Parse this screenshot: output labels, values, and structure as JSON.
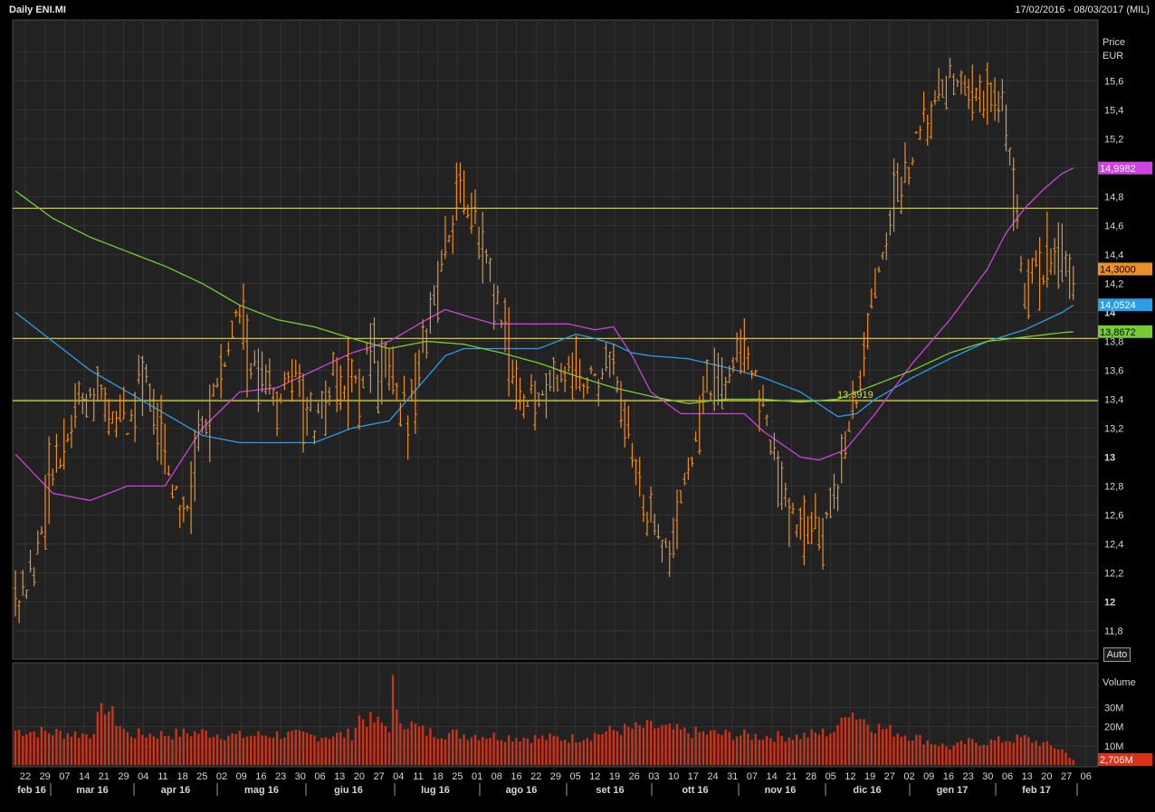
{
  "header": {
    "title": "Daily ENI.MI",
    "range": "17/02/2016 - 08/03/2017 (MIL)"
  },
  "colors": {
    "background": "#222222",
    "grid": "#333333",
    "candle": "#e8902a",
    "ma_magenta": "#cc44dd",
    "ma_blue": "#2a9de6",
    "ma_green": "#77cc33",
    "hline": "#e2dc3c",
    "volume": "#cc3318"
  },
  "axes": {
    "price_title": "Price",
    "price_unit": "EUR",
    "price_ticks": [
      "11,8",
      "12",
      "12,2",
      "12,4",
      "12,6",
      "12,8",
      "13",
      "13,2",
      "13,4",
      "13,6",
      "13,8",
      "14",
      "14,2",
      "14,4",
      "14,6",
      "14,8",
      "15,2",
      "15,4",
      "15,6"
    ],
    "bold_ticks": [
      "12",
      "13",
      "14"
    ],
    "volume_title": "Volume",
    "volume_ticks": [
      "10M",
      "20M",
      "30M"
    ],
    "auto_label": "Auto",
    "day_ticks": [
      "22",
      "29",
      "07",
      "14",
      "21",
      "29",
      "04",
      "11",
      "18",
      "25",
      "02",
      "09",
      "16",
      "23",
      "30",
      "06",
      "13",
      "20",
      "27",
      "04",
      "11",
      "18",
      "25",
      "01",
      "08",
      "16",
      "22",
      "29",
      "05",
      "12",
      "19",
      "26",
      "03",
      "10",
      "17",
      "24",
      "31",
      "07",
      "14",
      "21",
      "28",
      "05",
      "12",
      "19",
      "27",
      "02",
      "09",
      "16",
      "23",
      "30",
      "06",
      "13",
      "20",
      "27",
      "06"
    ],
    "month_labels": [
      "feb 16",
      "mar 16",
      "apr 16",
      "mag 16",
      "giu 16",
      "lug 16",
      "ago 16",
      "set 16",
      "ott 16",
      "nov 16",
      "dic 16",
      "gen 17",
      "feb 17"
    ]
  },
  "badges": {
    "magenta": "14,9982",
    "last": "14,3000",
    "blue": "14,0524",
    "green": "13,8672",
    "volume": "2,706M",
    "hline_label": "13,3919"
  },
  "chart_data": {
    "type": "ohlc-bar",
    "title": "Daily ENI.MI",
    "period": "17/02/2016 - 08/03/2017",
    "y_label": "Price EUR",
    "ylim": [
      11.65,
      15.9
    ],
    "x_labels": [
      "22",
      "29",
      "07",
      "14",
      "21",
      "29",
      "04",
      "11",
      "18",
      "25",
      "02",
      "09",
      "16",
      "23",
      "30",
      "06",
      "13",
      "20",
      "27",
      "04",
      "11",
      "18",
      "25",
      "01",
      "08",
      "16",
      "22",
      "29",
      "05",
      "12",
      "19",
      "26",
      "03",
      "10",
      "17",
      "24",
      "31",
      "07",
      "14",
      "21",
      "28",
      "05",
      "12",
      "19",
      "27",
      "02",
      "09",
      "16",
      "23",
      "30",
      "06",
      "13",
      "20",
      "27",
      "06"
    ],
    "price_keypoints": [
      [
        0,
        12.0
      ],
      [
        5,
        12.2
      ],
      [
        10,
        12.9
      ],
      [
        15,
        13.3
      ],
      [
        20,
        13.5
      ],
      [
        25,
        13.3
      ],
      [
        30,
        13.2
      ],
      [
        35,
        13.6
      ],
      [
        40,
        13.0
      ],
      [
        45,
        12.6
      ],
      [
        50,
        13.1
      ],
      [
        55,
        13.6
      ],
      [
        60,
        14.0
      ],
      [
        65,
        13.5
      ],
      [
        70,
        13.4
      ],
      [
        75,
        13.6
      ],
      [
        80,
        13.2
      ],
      [
        85,
        13.5
      ],
      [
        90,
        13.5
      ],
      [
        95,
        13.7
      ],
      [
        100,
        13.6
      ],
      [
        105,
        13.3
      ],
      [
        110,
        13.8
      ],
      [
        115,
        14.5
      ],
      [
        120,
        14.8
      ],
      [
        125,
        14.4
      ],
      [
        130,
        14.0
      ],
      [
        135,
        13.4
      ],
      [
        140,
        13.4
      ],
      [
        145,
        13.6
      ],
      [
        150,
        13.6
      ],
      [
        155,
        13.5
      ],
      [
        160,
        13.7
      ],
      [
        165,
        13.0
      ],
      [
        170,
        12.5
      ],
      [
        175,
        12.4
      ],
      [
        180,
        12.9
      ],
      [
        185,
        13.4
      ],
      [
        190,
        13.5
      ],
      [
        195,
        13.8
      ],
      [
        200,
        13.3
      ],
      [
        205,
        12.8
      ],
      [
        210,
        12.5
      ],
      [
        215,
        12.5
      ],
      [
        220,
        12.8
      ],
      [
        225,
        13.4
      ],
      [
        230,
        14.2
      ],
      [
        235,
        14.8
      ],
      [
        240,
        15.1
      ],
      [
        245,
        15.4
      ],
      [
        250,
        15.6
      ],
      [
        255,
        15.5
      ],
      [
        260,
        15.5
      ],
      [
        265,
        15.3
      ],
      [
        270,
        14.2
      ],
      [
        275,
        14.3
      ],
      [
        280,
        14.4
      ],
      [
        283,
        14.3
      ]
    ],
    "moving_averages": [
      {
        "name": "14,9982",
        "color": "#cc44dd",
        "points": [
          [
            0,
            13.02
          ],
          [
            10,
            12.75
          ],
          [
            20,
            12.7
          ],
          [
            30,
            12.8
          ],
          [
            40,
            12.8
          ],
          [
            50,
            13.2
          ],
          [
            60,
            13.45
          ],
          [
            70,
            13.48
          ],
          [
            80,
            13.6
          ],
          [
            90,
            13.72
          ],
          [
            100,
            13.8
          ],
          [
            110,
            13.95
          ],
          [
            115,
            14.02
          ],
          [
            120,
            13.98
          ],
          [
            128,
            13.92
          ],
          [
            138,
            13.92
          ],
          [
            148,
            13.92
          ],
          [
            155,
            13.88
          ],
          [
            160,
            13.9
          ],
          [
            165,
            13.7
          ],
          [
            170,
            13.45
          ],
          [
            178,
            13.3
          ],
          [
            190,
            13.3
          ],
          [
            195,
            13.3
          ],
          [
            200,
            13.18
          ],
          [
            210,
            13.0
          ],
          [
            215,
            12.98
          ],
          [
            222,
            13.05
          ],
          [
            230,
            13.3
          ],
          [
            240,
            13.65
          ],
          [
            250,
            13.95
          ],
          [
            260,
            14.3
          ],
          [
            265,
            14.55
          ],
          [
            270,
            14.72
          ],
          [
            275,
            14.85
          ],
          [
            280,
            14.96
          ],
          [
            283,
            14.998
          ]
        ]
      },
      {
        "name": "14,0524",
        "color": "#2a9de6",
        "points": [
          [
            0,
            14.0
          ],
          [
            10,
            13.8
          ],
          [
            20,
            13.6
          ],
          [
            30,
            13.45
          ],
          [
            40,
            13.3
          ],
          [
            50,
            13.15
          ],
          [
            60,
            13.1
          ],
          [
            70,
            13.1
          ],
          [
            80,
            13.1
          ],
          [
            90,
            13.2
          ],
          [
            100,
            13.25
          ],
          [
            110,
            13.55
          ],
          [
            115,
            13.7
          ],
          [
            120,
            13.75
          ],
          [
            130,
            13.75
          ],
          [
            140,
            13.75
          ],
          [
            150,
            13.85
          ],
          [
            155,
            13.82
          ],
          [
            160,
            13.78
          ],
          [
            165,
            13.72
          ],
          [
            170,
            13.7
          ],
          [
            180,
            13.68
          ],
          [
            190,
            13.62
          ],
          [
            200,
            13.55
          ],
          [
            205,
            13.5
          ],
          [
            210,
            13.45
          ],
          [
            220,
            13.28
          ],
          [
            225,
            13.3
          ],
          [
            230,
            13.4
          ],
          [
            240,
            13.55
          ],
          [
            250,
            13.68
          ],
          [
            260,
            13.8
          ],
          [
            270,
            13.88
          ],
          [
            280,
            14.0
          ],
          [
            283,
            14.05
          ]
        ]
      },
      {
        "name": "13,8672",
        "color": "#77cc33",
        "points": [
          [
            0,
            14.84
          ],
          [
            10,
            14.65
          ],
          [
            20,
            14.52
          ],
          [
            30,
            14.42
          ],
          [
            40,
            14.32
          ],
          [
            50,
            14.2
          ],
          [
            60,
            14.05
          ],
          [
            70,
            13.95
          ],
          [
            80,
            13.9
          ],
          [
            90,
            13.82
          ],
          [
            100,
            13.75
          ],
          [
            110,
            13.8
          ],
          [
            120,
            13.78
          ],
          [
            130,
            13.72
          ],
          [
            140,
            13.65
          ],
          [
            150,
            13.56
          ],
          [
            160,
            13.48
          ],
          [
            170,
            13.42
          ],
          [
            180,
            13.37
          ],
          [
            190,
            13.4
          ],
          [
            200,
            13.4
          ],
          [
            210,
            13.38
          ],
          [
            220,
            13.4
          ],
          [
            230,
            13.5
          ],
          [
            240,
            13.6
          ],
          [
            250,
            13.72
          ],
          [
            260,
            13.8
          ],
          [
            270,
            13.83
          ],
          [
            280,
            13.86
          ],
          [
            283,
            13.867
          ]
        ]
      }
    ],
    "horizontal_lines": [
      14.72,
      13.82,
      13.39
    ],
    "last_price": 14.3,
    "volume_ticks_values": [
      10,
      20,
      30
    ],
    "volume_ylim": [
      0,
      45
    ],
    "volume_keypoints": [
      [
        0,
        18
      ],
      [
        10,
        17
      ],
      [
        20,
        16
      ],
      [
        24,
        31
      ],
      [
        30,
        16
      ],
      [
        40,
        16
      ],
      [
        50,
        17
      ],
      [
        60,
        15
      ],
      [
        70,
        16
      ],
      [
        80,
        15
      ],
      [
        90,
        16
      ],
      [
        92,
        25
      ],
      [
        100,
        20
      ],
      [
        101,
        42
      ],
      [
        102,
        25
      ],
      [
        110,
        17
      ],
      [
        120,
        16
      ],
      [
        130,
        15
      ],
      [
        140,
        14
      ],
      [
        150,
        14
      ],
      [
        160,
        18
      ],
      [
        170,
        20
      ],
      [
        180,
        17
      ],
      [
        190,
        16
      ],
      [
        200,
        15
      ],
      [
        210,
        15
      ],
      [
        220,
        18
      ],
      [
        222,
        30
      ],
      [
        230,
        20
      ],
      [
        240,
        15
      ],
      [
        250,
        9
      ],
      [
        255,
        12
      ],
      [
        260,
        12
      ],
      [
        270,
        14
      ],
      [
        275,
        11
      ],
      [
        280,
        8
      ],
      [
        283,
        2.7
      ]
    ],
    "last_volume": 2.706
  }
}
